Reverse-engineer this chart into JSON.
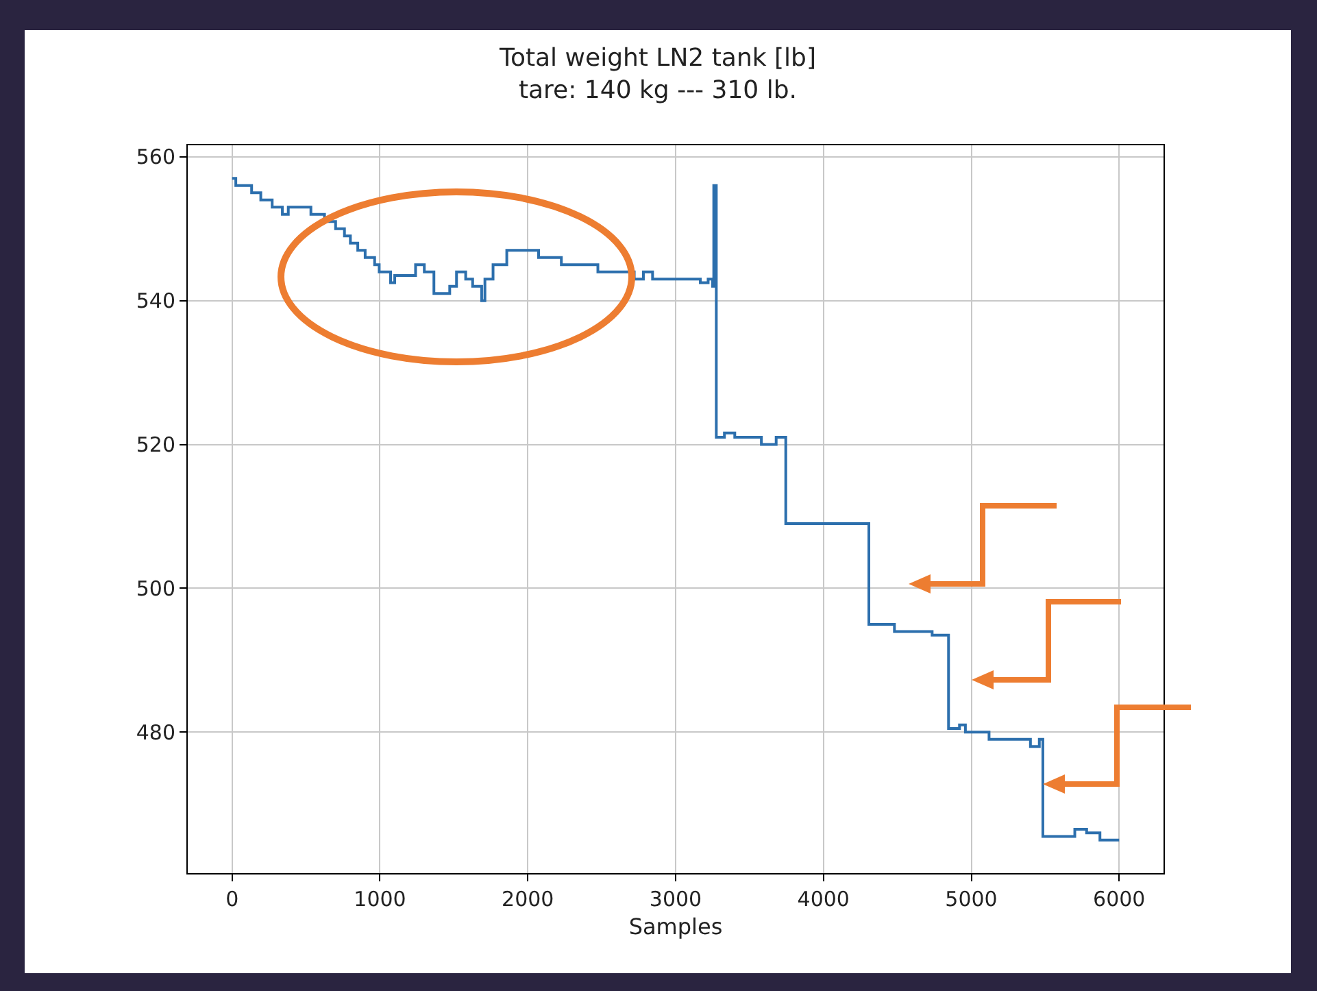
{
  "chart_data": {
    "type": "step",
    "title": "Total weight LN2 tank [lb]",
    "subtitle": "tare: 140 kg --- 310 lb.",
    "xlabel": "Samples",
    "x": [
      0,
      25,
      132,
      194,
      271,
      340,
      380,
      533,
      625,
      700,
      760,
      800,
      850,
      900,
      964,
      995,
      1072,
      1100,
      1241,
      1300,
      1365,
      1472,
      1518,
      1580,
      1627,
      1688,
      1710,
      1765,
      1858,
      2073,
      2227,
      2474,
      2720,
      2782,
      2844,
      3167,
      3220,
      3250,
      3258,
      3275,
      3330,
      3400,
      3580,
      3680,
      3745,
      4307,
      4480,
      4735,
      4846,
      4920,
      4960,
      5120,
      5400,
      5460,
      5484,
      5700,
      5780,
      5870,
      6000
    ],
    "series": [
      {
        "color": "#2c6fad",
        "values": [
          557,
          556,
          555,
          554,
          553,
          552,
          553,
          552,
          551,
          550,
          549,
          548,
          547,
          546,
          545,
          544,
          542.5,
          543.5,
          545,
          544,
          541,
          542,
          544,
          543,
          542,
          540,
          543,
          545,
          547,
          546,
          545,
          544,
          543,
          544,
          543,
          542.5,
          543,
          542,
          556,
          521,
          521.6,
          521,
          520,
          521,
          509,
          495,
          494,
          493.5,
          480.5,
          481,
          480,
          479,
          478,
          479,
          465.5,
          466.5,
          466,
          465,
          465
        ]
      }
    ],
    "xlim": [
      -300,
      6300
    ],
    "ylim": [
      460.4,
      561.6
    ],
    "xticks": [
      0,
      1000,
      2000,
      3000,
      4000,
      5000,
      6000
    ],
    "yticks": [
      480,
      500,
      520,
      540,
      560
    ],
    "grid": true
  }
}
